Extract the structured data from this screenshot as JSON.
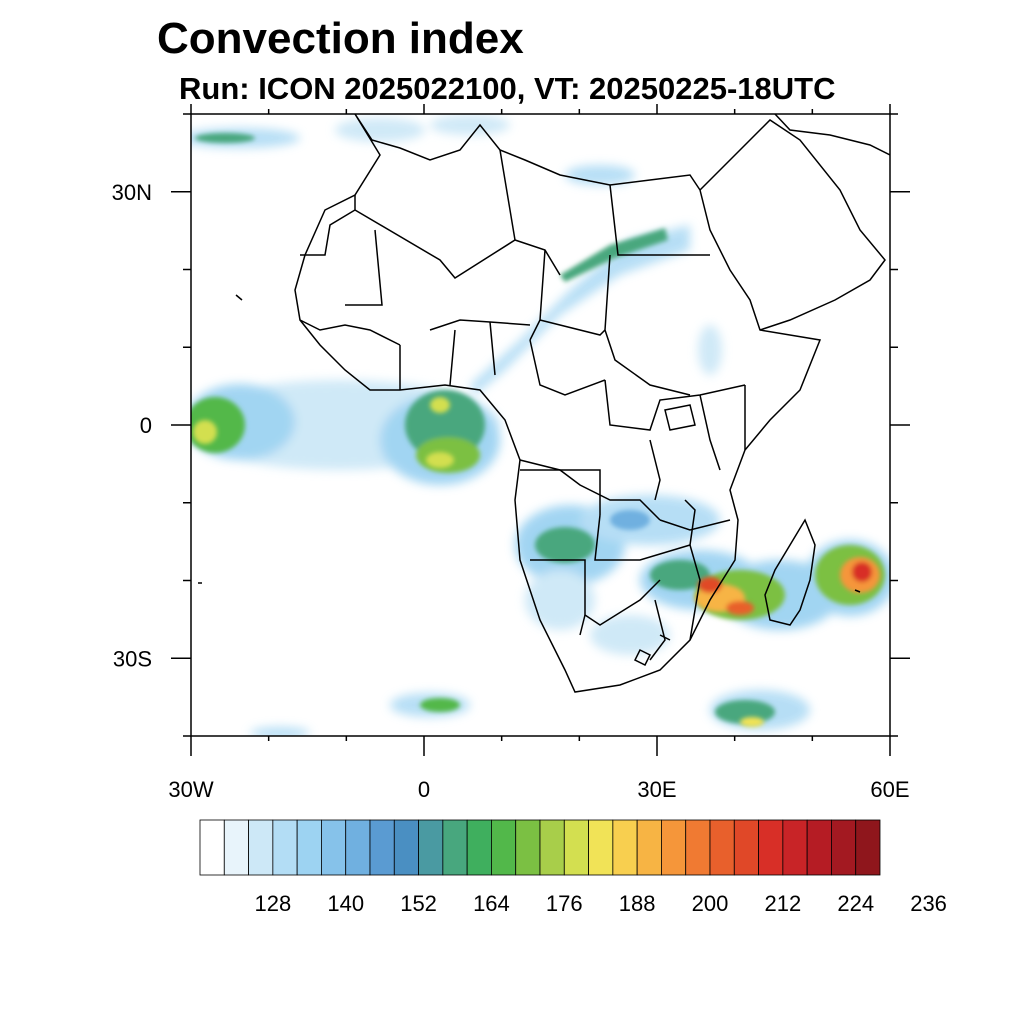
{
  "title": "Convection index",
  "subtitle": "Run: ICON 2025022100,  VT: 20250225-18UTC",
  "map": {
    "lon_range": [
      -30,
      60
    ],
    "lat_range": [
      -40,
      40
    ],
    "lon_ticks": [
      {
        "value": -30,
        "label": "30W"
      },
      {
        "value": 0,
        "label": "0"
      },
      {
        "value": 30,
        "label": "30E"
      },
      {
        "value": 60,
        "label": "60E"
      }
    ],
    "lat_ticks": [
      {
        "value": 30,
        "label": "30N"
      },
      {
        "value": 0,
        "label": "0"
      },
      {
        "value": -30,
        "label": "30S"
      }
    ]
  },
  "colorbar": {
    "colors": [
      "#ffffff",
      "#e8f4fb",
      "#cde8f7",
      "#b3ddf5",
      "#9dd3f2",
      "#86c2ea",
      "#70b0e0",
      "#5a9bd2",
      "#4a8fc2",
      "#4a9aa2",
      "#48a77e",
      "#3faf5e",
      "#52b84a",
      "#7bc043",
      "#a8ce4a",
      "#d3df50",
      "#f1e357",
      "#f8cf4f",
      "#f7b444",
      "#f5963a",
      "#f07a32",
      "#e8602c",
      "#e04828",
      "#d82f27",
      "#c82427",
      "#b51c24",
      "#a31921",
      "#8f161c"
    ],
    "tick_labels": [
      "128",
      "140",
      "152",
      "164",
      "176",
      "188",
      "200",
      "212",
      "224",
      "236"
    ]
  }
}
